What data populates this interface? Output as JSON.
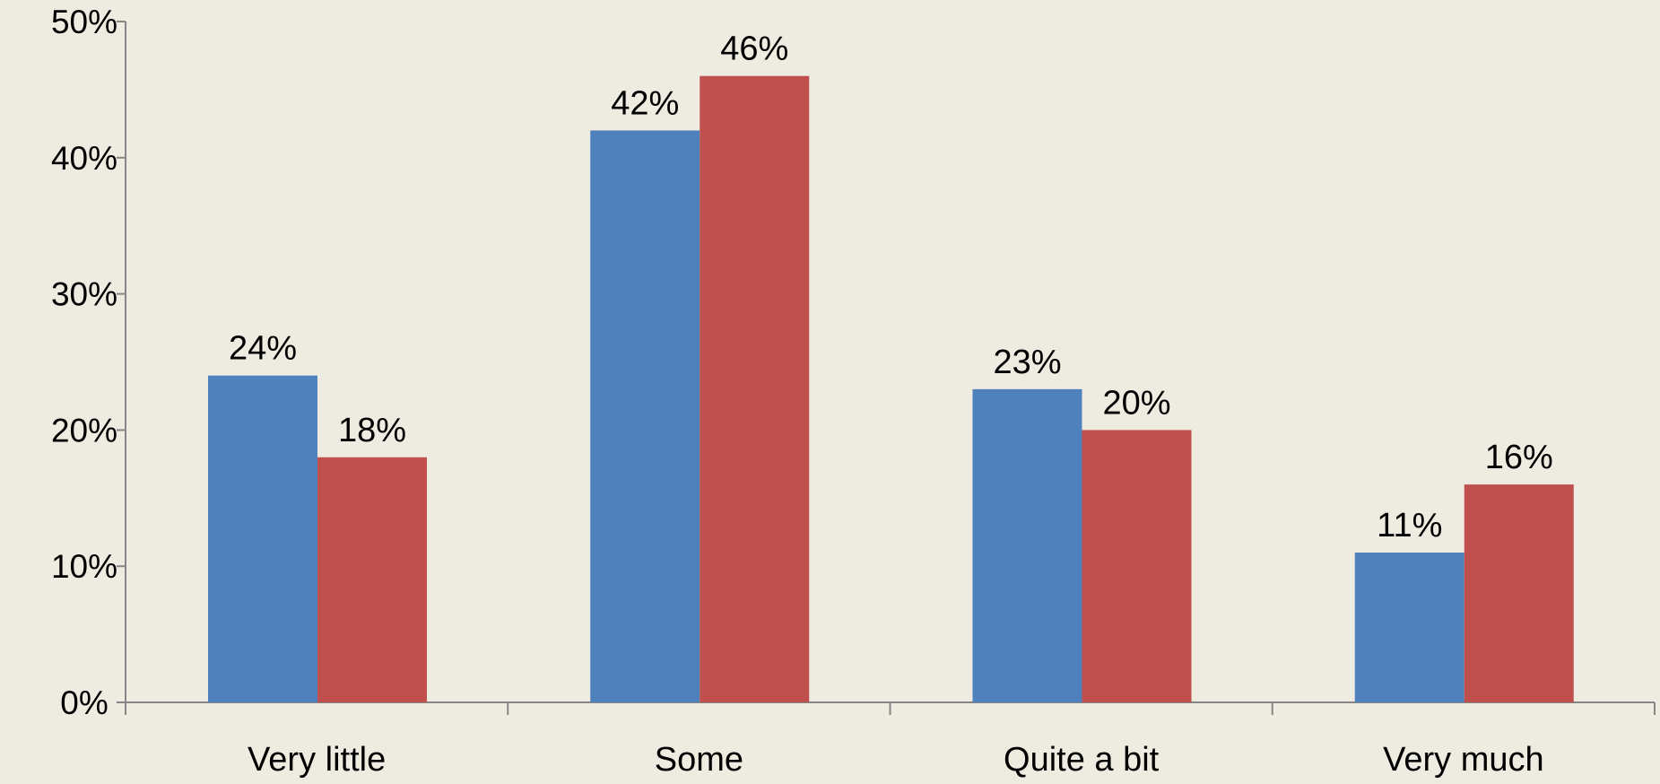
{
  "chart_data": {
    "type": "bar",
    "title": "",
    "xlabel": "",
    "ylabel": "",
    "categories": [
      "Very little",
      "Some",
      "Quite a bit",
      "Very much"
    ],
    "series": [
      {
        "color": "#4F81BD",
        "values": [
          24,
          42,
          23,
          11
        ],
        "labels": [
          "24%",
          "42%",
          "23%",
          "11%"
        ]
      },
      {
        "color": "#C0504D",
        "values": [
          18,
          46,
          20,
          16
        ],
        "labels": [
          "18%",
          "46%",
          "20%",
          "16%"
        ]
      }
    ],
    "ylim": [
      0,
      50
    ],
    "yticks": [
      0,
      10,
      20,
      30,
      40,
      50
    ],
    "ytick_labels": [
      "0%",
      "10%",
      "20%",
      "30%",
      "40%",
      "50%"
    ],
    "grid": false,
    "legend": "none",
    "background_color": "#EEEBE0",
    "axis_color": "#868686"
  }
}
